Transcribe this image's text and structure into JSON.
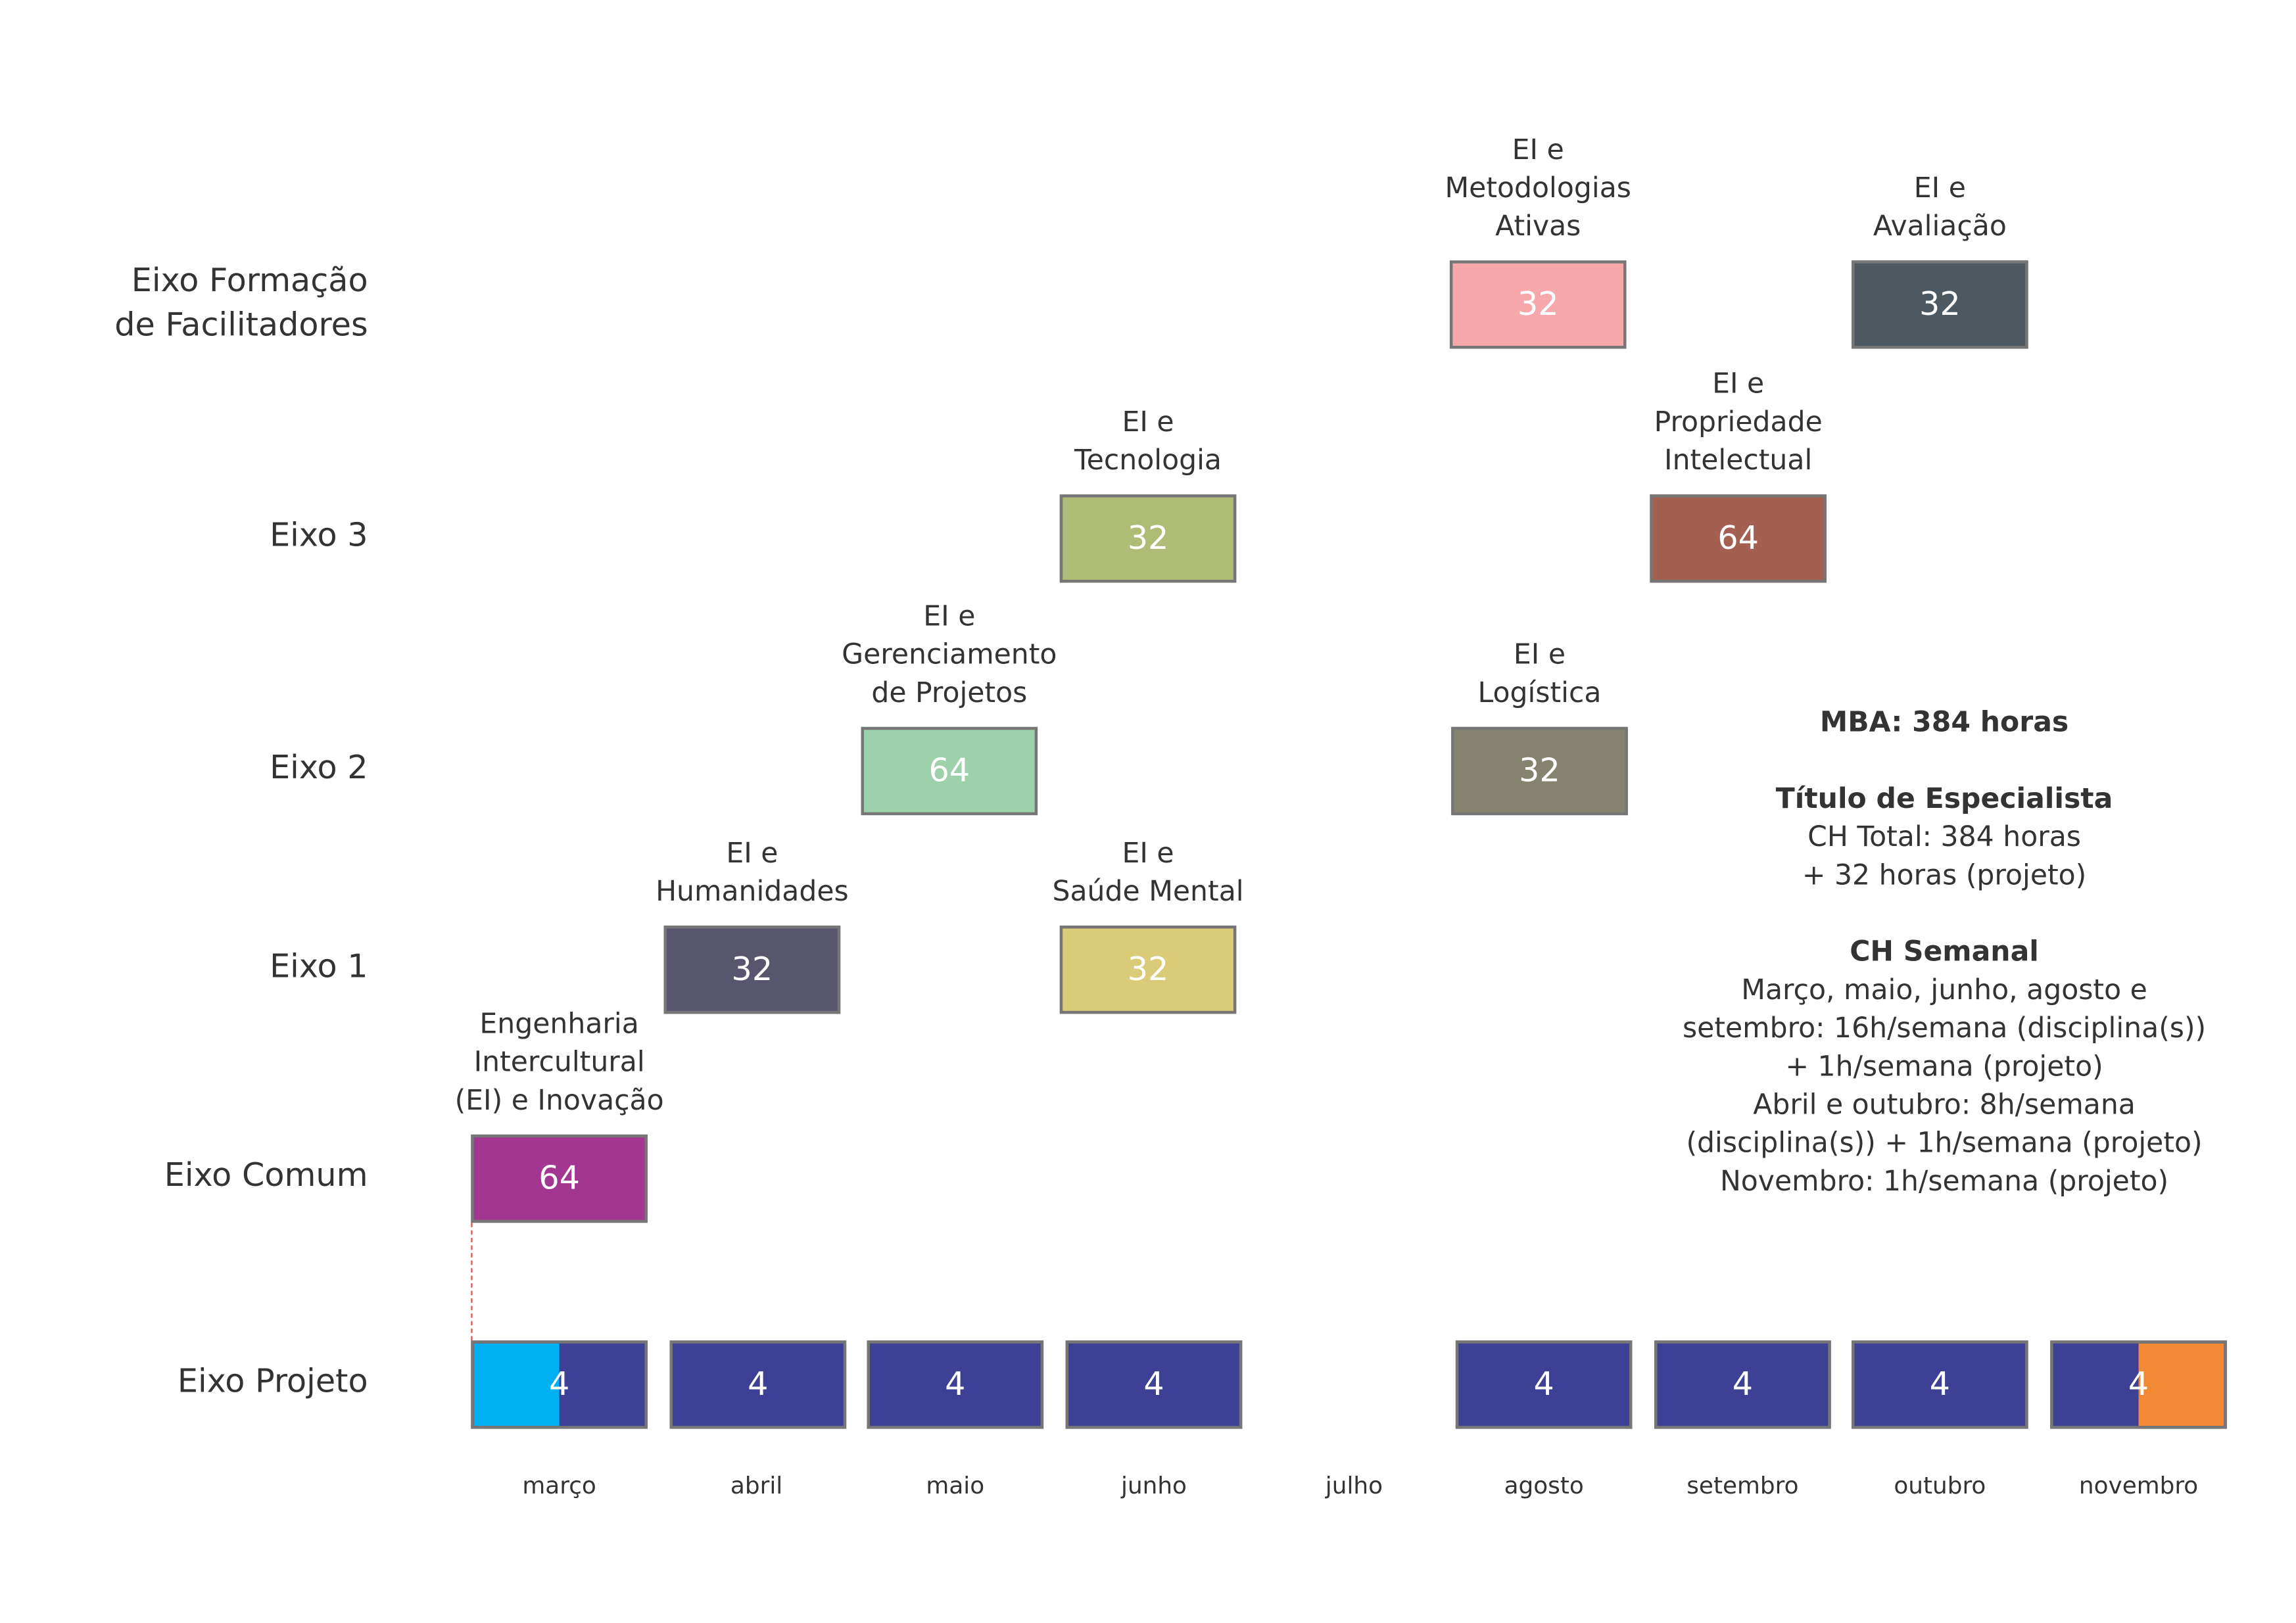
{
  "rows": [
    {
      "label": "Eixo Formação\nde Facilitadores"
    },
    {
      "label": "Eixo 3"
    },
    {
      "label": "Eixo 2"
    },
    {
      "label": "Eixo 1"
    },
    {
      "label": "Eixo Comum"
    },
    {
      "label": "Eixo Projeto"
    }
  ],
  "modules": [
    {
      "title": "EI e\nMetodologias\nAtivas",
      "hours": "32",
      "color": "#f7a8ab",
      "row": "Eixo Formação de Facilitadores",
      "month": "agosto"
    },
    {
      "title": "EI e\nAvaliação",
      "hours": "32",
      "color": "#4d5860",
      "row": "Eixo Formação de Facilitadores",
      "month": "outubro"
    },
    {
      "title": "EI e\nTecnologia",
      "hours": "32",
      "color": "#afbc76",
      "row": "Eixo 3",
      "month": "junho"
    },
    {
      "title": "EI e\nPropriedade\nIntelectual",
      "hours": "64",
      "color": "#a35f4f",
      "row": "Eixo 3",
      "month": "setembro"
    },
    {
      "title": "EI e\nGerenciamento\nde Projetos",
      "hours": "64",
      "color": "#9dd1ac",
      "row": "Eixo 2",
      "month": "maio"
    },
    {
      "title": "EI e\nLogística",
      "hours": "32",
      "color": "#858270",
      "row": "Eixo 2",
      "month": "agosto"
    },
    {
      "title": "EI e\nHumanidades",
      "hours": "32",
      "color": "#58556f",
      "row": "Eixo 1",
      "month": "abril"
    },
    {
      "title": "EI e\nSaúde Mental",
      "hours": "32",
      "color": "#d9cb77",
      "row": "Eixo 1",
      "month": "junho"
    },
    {
      "title": "Engenharia\nIntercultural\n(EI) e Inovação",
      "hours": "64",
      "color": "#a23690",
      "row": "Eixo Comum",
      "month": "março"
    }
  ],
  "project": {
    "color": "#3d4094",
    "start_color": "#00b0f0",
    "end_color": "#f28a35",
    "blocks": [
      {
        "month": "março",
        "hours": "4",
        "accent": "start"
      },
      {
        "month": "abril",
        "hours": "4"
      },
      {
        "month": "maio",
        "hours": "4"
      },
      {
        "month": "junho",
        "hours": "4"
      },
      {
        "month": "agosto",
        "hours": "4"
      },
      {
        "month": "setembro",
        "hours": "4"
      },
      {
        "month": "outubro",
        "hours": "4"
      },
      {
        "month": "novembro",
        "hours": "4",
        "accent": "end"
      }
    ]
  },
  "months": [
    "março",
    "abril",
    "maio",
    "junho",
    "julho",
    "agosto",
    "setembro",
    "outubro",
    "novembro"
  ],
  "info": {
    "mba": "MBA: 384 horas",
    "titulo_heading": "Título de Especialista",
    "ch_total": "CH Total: 384 horas",
    "ch_projeto": "+ 32 horas (projeto)",
    "semanal_heading": "CH Semanal",
    "semanal_lines": [
      "Março, maio, junho, agosto e",
      "setembro: 16h/semana (disciplina(s))",
      "+ 1h/semana (projeto)",
      "Abril e outubro: 8h/semana",
      "(disciplina(s)) + 1h/semana (projeto)",
      "Novembro: 1h/semana (projeto)"
    ]
  }
}
